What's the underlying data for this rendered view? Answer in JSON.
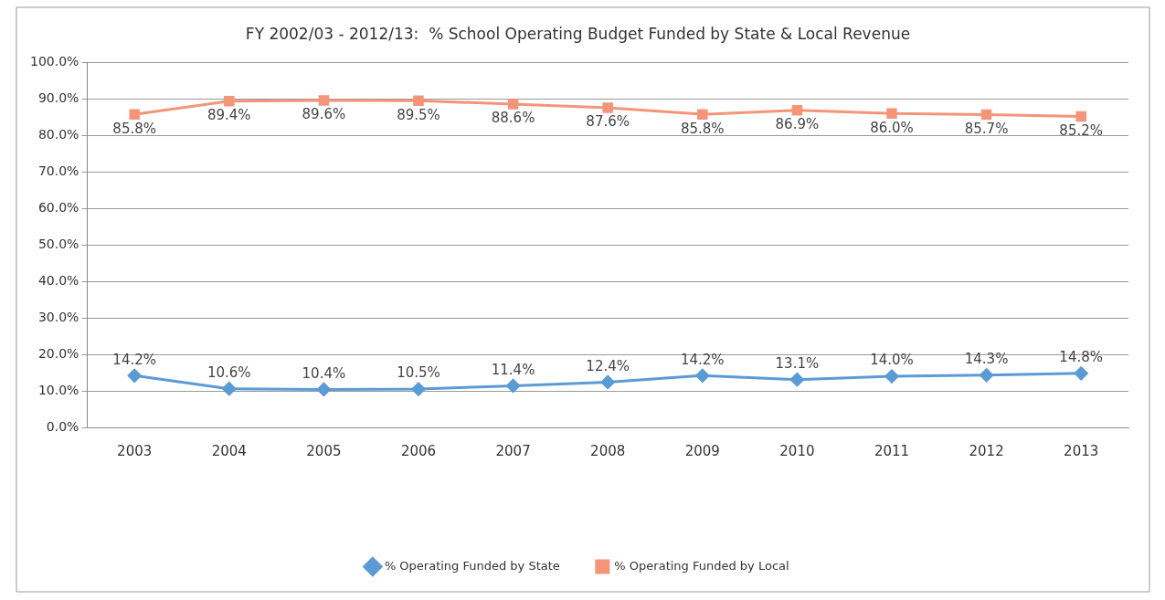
{
  "chart_data": {
    "type": "line",
    "title": "FY 2002/03 - 2012/13:  % School Operating Budget Funded by State & Local Revenue",
    "categories": [
      "2003",
      "2004",
      "2005",
      "2006",
      "2007",
      "2008",
      "2009",
      "2010",
      "2011",
      "2012",
      "2013"
    ],
    "series": [
      {
        "name": "% Operating Funded by State",
        "color": "#5b9bd5",
        "marker": "diamond",
        "values": [
          14.2,
          10.6,
          10.4,
          10.5,
          11.4,
          12.4,
          14.2,
          13.1,
          14.0,
          14.3,
          14.8
        ],
        "value_labels": [
          "14.2%",
          "10.6%",
          "10.4%",
          "10.5%",
          "11.4%",
          "12.4%",
          "14.2%",
          "13.1%",
          "14.0%",
          "14.3%",
          "14.8%"
        ]
      },
      {
        "name": "% Operating Funded by Local",
        "color": "#f4957a",
        "marker": "square",
        "values": [
          85.8,
          89.4,
          89.6,
          89.5,
          88.6,
          87.6,
          85.8,
          86.9,
          86.0,
          85.7,
          85.2
        ],
        "value_labels": [
          "85.8%",
          "89.4%",
          "89.6%",
          "89.5%",
          "88.6%",
          "87.6%",
          "85.8%",
          "86.9%",
          "86.0%",
          "85.7%",
          "85.2%"
        ]
      }
    ],
    "ylim": [
      0,
      100
    ],
    "yticks": [
      {
        "value": 0,
        "label": "0.0%"
      },
      {
        "value": 10,
        "label": "10.0%"
      },
      {
        "value": 20,
        "label": "20.0%"
      },
      {
        "value": 30,
        "label": "30.0%"
      },
      {
        "value": 40,
        "label": "40.0%"
      },
      {
        "value": 50,
        "label": "50.0%"
      },
      {
        "value": 60,
        "label": "60.0%"
      },
      {
        "value": 70,
        "label": "70.0%"
      },
      {
        "value": 80,
        "label": "80.0%"
      },
      {
        "value": 90,
        "label": "90.0%"
      },
      {
        "value": 100,
        "label": "100.0%"
      }
    ],
    "grid": "y",
    "legend": "bottom",
    "line_style": "solid"
  }
}
